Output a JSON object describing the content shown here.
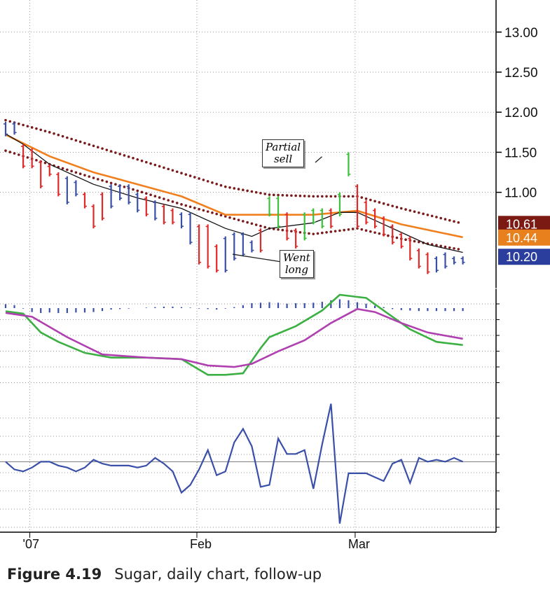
{
  "caption": {
    "label": "Figure 4.19",
    "text": "Sugar, daily chart, follow-up"
  },
  "colors": {
    "up_bar": "#3a4fa8",
    "down_bar": "#e02a2a",
    "impulse_up": "#3cc13c",
    "ema_slow": "#f07f1e",
    "ema_fast": "#111111",
    "channel": "#7a1a1a",
    "macd_line": "#3cb043",
    "signal_line": "#b040b0",
    "histogram": "#3a4fa8",
    "force": "#3a4fa8",
    "grid": "#9a9a9a",
    "badge_upper": "#7a1a12",
    "badge_ema": "#e8801e",
    "badge_close": "#2b3e9e"
  },
  "annotations": [
    {
      "text_lines": [
        "Partial",
        "sell"
      ],
      "day": 36.3,
      "price": 11.48
    },
    {
      "text_lines": [
        "Went",
        "long"
      ],
      "day": 25.5,
      "price": 10.28
    }
  ],
  "chart_data": [
    {
      "type": "ohlc",
      "title": "",
      "x_labels": [
        {
          "day": 1,
          "label": "'07"
        },
        {
          "day": 20,
          "label": "Feb"
        },
        {
          "day": 38,
          "label": "Mar"
        }
      ],
      "ylim": [
        9.8,
        13.4
      ],
      "yticks": [
        11.0,
        11.5,
        12.0,
        12.5,
        13.0
      ],
      "ytick_labels": [
        "11.00",
        "11.50",
        "12.00",
        "12.50",
        "13.00"
      ],
      "last_values": [
        {
          "label": "10.61",
          "value": 10.61,
          "role": "upper_channel"
        },
        {
          "label": "10.44",
          "value": 10.44,
          "role": "ema"
        },
        {
          "label": "10.20",
          "value": 10.2,
          "role": "close"
        }
      ],
      "series": [
        {
          "kind": "bars",
          "days": [
            0,
            1,
            2,
            3,
            4,
            5,
            6,
            7,
            8,
            9,
            10,
            11,
            12,
            13,
            14,
            15,
            16,
            17,
            18,
            19,
            20,
            21,
            22,
            23,
            24,
            25,
            26,
            27,
            28,
            29,
            30,
            31,
            32,
            33,
            34,
            35,
            36,
            37,
            38,
            39,
            40,
            41,
            42,
            43,
            44,
            45,
            46,
            47,
            48,
            49,
            50,
            51,
            52
          ],
          "high": [
            11.88,
            11.88,
            11.6,
            11.55,
            11.4,
            11.35,
            11.25,
            11.2,
            11.15,
            11.0,
            10.85,
            11.0,
            11.1,
            11.1,
            11.1,
            11.0,
            10.95,
            10.9,
            10.85,
            10.8,
            10.75,
            10.75,
            10.6,
            10.6,
            10.35,
            10.45,
            10.5,
            10.5,
            10.4,
            10.55,
            10.95,
            10.95,
            10.75,
            10.55,
            10.75,
            10.8,
            10.8,
            10.8,
            11.0,
            11.5,
            11.1,
            10.9,
            10.8,
            10.7,
            10.6,
            10.5,
            10.45,
            10.3,
            10.25,
            10.2,
            10.25,
            10.2,
            10.2
          ],
          "low": [
            11.7,
            11.72,
            11.3,
            11.3,
            11.05,
            11.2,
            10.95,
            10.85,
            10.95,
            10.8,
            10.55,
            10.65,
            10.8,
            10.9,
            10.85,
            10.75,
            10.7,
            10.65,
            10.6,
            10.6,
            10.55,
            10.35,
            10.1,
            10.05,
            10.0,
            10.0,
            10.15,
            10.2,
            10.25,
            10.25,
            10.7,
            10.55,
            10.4,
            10.3,
            10.4,
            10.6,
            10.55,
            10.55,
            10.7,
            11.2,
            10.55,
            10.6,
            10.55,
            10.45,
            10.35,
            10.3,
            10.15,
            10.05,
            9.98,
            10.0,
            10.05,
            10.1,
            10.1
          ],
          "direction": [
            "up",
            "up",
            "down",
            "down",
            "down",
            "down",
            "down",
            "up",
            "up",
            "down",
            "down",
            "down",
            "up",
            "up",
            "up",
            "up",
            "down",
            "up",
            "down",
            "down",
            "up",
            "up",
            "down",
            "down",
            "down",
            "up",
            "up",
            "up",
            "up",
            "down",
            "impulse",
            "impulse",
            "down",
            "down",
            "impulse",
            "impulse",
            "impulse",
            "down",
            "impulse",
            "impulse",
            "down",
            "down",
            "down",
            "down",
            "down",
            "down",
            "down",
            "down",
            "down",
            "up",
            "up",
            "up",
            "up"
          ]
        },
        {
          "kind": "line",
          "role": "ema_slow",
          "days": [
            0,
            5,
            10,
            15,
            20,
            25,
            30,
            35,
            40,
            45,
            52
          ],
          "values": [
            11.72,
            11.45,
            11.25,
            11.1,
            10.95,
            10.72,
            10.72,
            10.72,
            10.77,
            10.6,
            10.44
          ]
        },
        {
          "kind": "line",
          "role": "ema_fast",
          "days": [
            0,
            2,
            5,
            10,
            15,
            20,
            25,
            28,
            30,
            35,
            38,
            40,
            42,
            45,
            48,
            52
          ],
          "values": [
            11.73,
            11.6,
            11.35,
            11.1,
            10.93,
            10.8,
            10.55,
            10.45,
            10.55,
            10.62,
            10.75,
            10.75,
            10.65,
            10.5,
            10.35,
            10.25
          ]
        },
        {
          "kind": "dots",
          "role": "upper_channel",
          "days": [
            0,
            5,
            10,
            15,
            20,
            25,
            30,
            35,
            40,
            45,
            52
          ],
          "values": [
            11.9,
            11.75,
            11.58,
            11.41,
            11.24,
            11.07,
            10.97,
            10.95,
            10.95,
            10.8,
            10.61
          ]
        },
        {
          "kind": "dots",
          "role": "lower_channel",
          "days": [
            0,
            5,
            10,
            15,
            20,
            25,
            30,
            35,
            40,
            45,
            52
          ],
          "values": [
            11.52,
            11.35,
            11.18,
            11.02,
            10.85,
            10.7,
            10.55,
            10.48,
            10.55,
            10.42,
            10.28
          ]
        }
      ]
    },
    {
      "type": "line",
      "title": "",
      "series": [
        {
          "role": "histogram",
          "days": [
            0,
            1,
            2,
            3,
            4,
            5,
            6,
            7,
            8,
            9,
            10,
            11,
            12,
            13,
            14,
            15,
            16,
            17,
            18,
            19,
            20,
            21,
            22,
            23,
            24,
            25,
            26,
            27,
            28,
            29,
            30,
            31,
            32,
            33,
            34,
            35,
            36,
            37,
            38,
            39,
            40,
            41,
            42,
            43,
            44,
            45,
            46,
            47,
            48,
            49,
            50,
            51,
            52
          ],
          "values": [
            0.4,
            0.3,
            -0.05,
            -0.4,
            -0.5,
            -0.45,
            -0.5,
            -0.5,
            -0.45,
            -0.45,
            -0.4,
            -0.3,
            -0.15,
            -0.1,
            -0.05,
            0,
            0.05,
            0.1,
            0.15,
            0.15,
            0.1,
            0.05,
            -0.05,
            -0.1,
            -0.15,
            -0.05,
            0.1,
            0.3,
            0.5,
            0.55,
            0.6,
            0.55,
            0.45,
            0.5,
            0.5,
            0.55,
            0.65,
            0.8,
            0.9,
            0.8,
            0.6,
            0.45,
            0.25,
            0.1,
            -0.1,
            -0.2,
            -0.25,
            -0.3,
            -0.3,
            -0.3,
            -0.3,
            -0.3,
            -0.3
          ]
        },
        {
          "role": "macd_line",
          "days": [
            0,
            2,
            4,
            6,
            9,
            12,
            16,
            20,
            23,
            25,
            27,
            29,
            30,
            33,
            36,
            38,
            41,
            43,
            46,
            49,
            52
          ],
          "values": [
            0.15,
            0,
            -1.2,
            -1.8,
            -2.5,
            -2.8,
            -2.8,
            -2.9,
            -3.9,
            -3.9,
            -3.8,
            -2.2,
            -1.5,
            -0.8,
            0.2,
            1.2,
            1.0,
            0.2,
            -1.0,
            -1.8,
            -2.0
          ]
        },
        {
          "role": "signal_line",
          "days": [
            0,
            3,
            7,
            11,
            16,
            20,
            23,
            26,
            28,
            31,
            34,
            37,
            40,
            42,
            45,
            48,
            52
          ],
          "values": [
            0.05,
            -0.2,
            -1.5,
            -2.6,
            -2.8,
            -2.9,
            -3.3,
            -3.4,
            -3.2,
            -2.4,
            -1.7,
            -0.6,
            0.3,
            0.1,
            -0.6,
            -1.2,
            -1.6
          ]
        }
      ]
    },
    {
      "type": "line",
      "title": "",
      "series": [
        {
          "role": "force_index",
          "days": [
            0,
            1,
            2,
            3,
            4,
            5,
            6,
            7,
            8,
            9,
            10,
            11,
            12,
            13,
            14,
            15,
            16,
            17,
            18,
            19,
            20,
            21,
            22,
            23,
            24,
            25,
            26,
            27,
            28,
            29,
            30,
            31,
            32,
            33,
            34,
            35,
            36,
            37,
            38,
            39,
            40,
            41,
            42,
            43,
            44,
            45,
            46,
            47,
            48,
            49,
            50,
            51,
            52
          ],
          "values": [
            0,
            -0.4,
            -0.5,
            -0.3,
            0,
            0,
            -0.2,
            -0.3,
            -0.5,
            -0.3,
            0.1,
            -0.1,
            -0.2,
            -0.2,
            -0.2,
            -0.3,
            -0.2,
            0.2,
            -0.1,
            -0.5,
            -1.6,
            -1.2,
            -0.4,
            0.6,
            -0.7,
            -0.5,
            1.0,
            1.7,
            0.8,
            -1.3,
            -1.2,
            1.2,
            0.4,
            0.4,
            0.6,
            -1.4,
            0.9,
            3.0,
            -3.2,
            -0.6,
            -0.6,
            -0.6,
            -0.8,
            -1.0,
            -0.1,
            0.1,
            -1.1,
            0.2,
            0,
            0.1,
            0,
            0.2,
            0
          ]
        }
      ]
    }
  ]
}
